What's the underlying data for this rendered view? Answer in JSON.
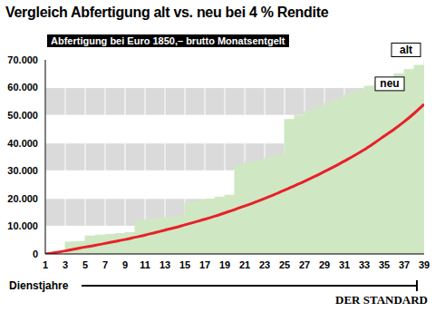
{
  "chart_data": {
    "type": "line",
    "title": "Vergleich Abfertigung alt vs. neu bei 4 % Rendite",
    "subtitle": "Abfertigung bei Euro 1850,– brutto Monatsentgelt",
    "x_label": "Dienstjahre",
    "source": "DER STANDARD",
    "x": [
      1,
      2,
      3,
      4,
      5,
      6,
      7,
      8,
      9,
      10,
      11,
      12,
      13,
      14,
      15,
      16,
      17,
      18,
      19,
      20,
      21,
      22,
      23,
      24,
      25,
      26,
      27,
      28,
      29,
      30,
      31,
      32,
      33,
      34,
      35,
      36,
      37,
      38,
      39
    ],
    "series": [
      {
        "name": "alt",
        "type": "area",
        "color": "#cfe8c3",
        "line_style": "step",
        "values": [
          0,
          0,
          4300,
          4500,
          6500,
          6800,
          7100,
          7400,
          7700,
          12000,
          12400,
          12800,
          13200,
          13700,
          18500,
          19200,
          19800,
          20500,
          21200,
          32000,
          33000,
          33800,
          34700,
          35600,
          48500,
          50000,
          51500,
          53000,
          54500,
          56000,
          57500,
          59000,
          60500,
          62000,
          63500,
          65000,
          66500,
          68000,
          69500
        ]
      },
      {
        "name": "neu",
        "type": "line",
        "color": "#e8202a",
        "line_style": "solid",
        "values": [
          0,
          500,
          1100,
          1800,
          2500,
          3100,
          3800,
          4500,
          5200,
          6000,
          6800,
          7700,
          8600,
          9500,
          10500,
          11500,
          12500,
          13600,
          14800,
          16000,
          17300,
          18600,
          20000,
          21500,
          23000,
          24600,
          26200,
          27900,
          29700,
          31500,
          33500,
          35500,
          37600,
          40000,
          42500,
          45000,
          47700,
          50700,
          54000
        ]
      }
    ],
    "xlim": [
      1,
      39
    ],
    "xticks": [
      1,
      3,
      5,
      7,
      9,
      11,
      13,
      15,
      17,
      19,
      21,
      23,
      25,
      27,
      29,
      31,
      33,
      35,
      37,
      39
    ],
    "ylim": [
      0,
      70000
    ],
    "yticks": [
      0,
      {
        "value": 10000,
        "label": "10.000"
      },
      {
        "value": 20000,
        "label": "20.000"
      },
      {
        "value": 30000,
        "label": "30.000"
      },
      {
        "value": 40000,
        "label": "40.000"
      },
      {
        "value": 50000,
        "label": "50.000"
      },
      {
        "value": 60000,
        "label": "60.000"
      },
      {
        "value": 70000,
        "label": "70.000"
      }
    ],
    "grid": true
  }
}
